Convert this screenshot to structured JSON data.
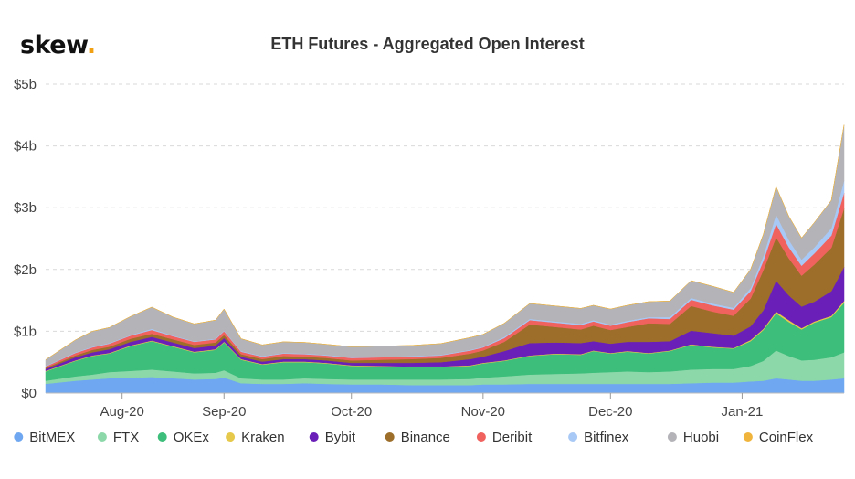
{
  "brand": {
    "name": "skew",
    "dot": "."
  },
  "chart_data": {
    "type": "area",
    "stacked": true,
    "title": "ETH Futures - Aggregated Open Interest",
    "xlabel": "",
    "ylabel": "",
    "x_range": [
      "2020-07-21",
      "2021-01-25"
    ],
    "ylim": [
      0,
      5
    ],
    "y_unit": "$ billions",
    "y_ticks": [
      "$0",
      "$1b",
      "$2b",
      "$3b",
      "$4b",
      "$5b"
    ],
    "x_ticks": [
      {
        "date": "2020-08-08",
        "label": "Aug-20"
      },
      {
        "date": "2020-09-01",
        "label": "Sep-20"
      },
      {
        "date": "2020-10-01",
        "label": "Oct-20"
      },
      {
        "date": "2020-11-01",
        "label": "Nov-20"
      },
      {
        "date": "2020-12-01",
        "label": "Dec-20"
      },
      {
        "date": "2021-01-01",
        "label": "Jan-21"
      }
    ],
    "grid": "horizontal dashed",
    "legend_position": "bottom",
    "x": [
      "2020-07-21",
      "2020-07-28",
      "2020-08-01",
      "2020-08-05",
      "2020-08-10",
      "2020-08-15",
      "2020-08-20",
      "2020-08-25",
      "2020-08-30",
      "2020-09-01",
      "2020-09-05",
      "2020-09-10",
      "2020-09-15",
      "2020-09-20",
      "2020-09-25",
      "2020-10-01",
      "2020-10-08",
      "2020-10-15",
      "2020-10-22",
      "2020-10-29",
      "2020-11-01",
      "2020-11-06",
      "2020-11-12",
      "2020-11-18",
      "2020-11-24",
      "2020-11-27",
      "2020-12-01",
      "2020-12-05",
      "2020-12-10",
      "2020-12-15",
      "2020-12-20",
      "2020-12-25",
      "2020-12-30",
      "2021-01-03",
      "2021-01-06",
      "2021-01-09",
      "2021-01-12",
      "2021-01-15",
      "2021-01-18",
      "2021-01-22",
      "2021-01-25"
    ],
    "series": [
      {
        "name": "BitMEX",
        "color": "#6fa8f0",
        "values": [
          0.15,
          0.2,
          0.22,
          0.24,
          0.25,
          0.26,
          0.24,
          0.22,
          0.23,
          0.25,
          0.16,
          0.15,
          0.15,
          0.16,
          0.15,
          0.14,
          0.14,
          0.13,
          0.13,
          0.13,
          0.14,
          0.14,
          0.15,
          0.15,
          0.15,
          0.15,
          0.15,
          0.15,
          0.15,
          0.15,
          0.16,
          0.17,
          0.17,
          0.19,
          0.2,
          0.24,
          0.22,
          0.2,
          0.2,
          0.22,
          0.24
        ]
      },
      {
        "name": "FTX",
        "color": "#8cd8a9",
        "values": [
          0.05,
          0.07,
          0.08,
          0.1,
          0.11,
          0.12,
          0.11,
          0.1,
          0.1,
          0.12,
          0.08,
          0.07,
          0.07,
          0.08,
          0.08,
          0.08,
          0.08,
          0.09,
          0.09,
          0.1,
          0.11,
          0.13,
          0.15,
          0.16,
          0.17,
          0.18,
          0.19,
          0.2,
          0.19,
          0.2,
          0.22,
          0.22,
          0.22,
          0.25,
          0.32,
          0.45,
          0.38,
          0.33,
          0.34,
          0.36,
          0.42
        ]
      },
      {
        "name": "OKEx",
        "color": "#3dbe7a",
        "values": [
          0.15,
          0.25,
          0.3,
          0.3,
          0.4,
          0.46,
          0.4,
          0.34,
          0.37,
          0.45,
          0.3,
          0.24,
          0.28,
          0.26,
          0.25,
          0.22,
          0.21,
          0.2,
          0.2,
          0.21,
          0.23,
          0.25,
          0.3,
          0.32,
          0.3,
          0.35,
          0.3,
          0.32,
          0.3,
          0.33,
          0.4,
          0.35,
          0.33,
          0.4,
          0.5,
          0.6,
          0.55,
          0.5,
          0.6,
          0.65,
          0.8
        ]
      },
      {
        "name": "Kraken",
        "color": "#e6c84a",
        "values": [
          0.01,
          0.01,
          0.01,
          0.01,
          0.01,
          0.01,
          0.01,
          0.01,
          0.01,
          0.01,
          0.01,
          0.01,
          0.01,
          0.01,
          0.01,
          0.01,
          0.01,
          0.01,
          0.01,
          0.01,
          0.01,
          0.01,
          0.01,
          0.01,
          0.01,
          0.01,
          0.01,
          0.01,
          0.01,
          0.01,
          0.01,
          0.01,
          0.01,
          0.02,
          0.02,
          0.03,
          0.03,
          0.02,
          0.02,
          0.02,
          0.03
        ]
      },
      {
        "name": "Bybit",
        "color": "#6a1fb8",
        "values": [
          0.03,
          0.05,
          0.05,
          0.06,
          0.06,
          0.06,
          0.06,
          0.06,
          0.06,
          0.06,
          0.04,
          0.04,
          0.04,
          0.04,
          0.04,
          0.04,
          0.05,
          0.06,
          0.07,
          0.1,
          0.1,
          0.15,
          0.2,
          0.18,
          0.18,
          0.15,
          0.15,
          0.15,
          0.18,
          0.15,
          0.22,
          0.22,
          0.2,
          0.22,
          0.3,
          0.5,
          0.4,
          0.35,
          0.32,
          0.4,
          0.55
        ]
      },
      {
        "name": "Binance",
        "color": "#9c6e2a",
        "values": [
          0.02,
          0.03,
          0.04,
          0.04,
          0.05,
          0.05,
          0.05,
          0.05,
          0.05,
          0.05,
          0.04,
          0.04,
          0.05,
          0.04,
          0.04,
          0.04,
          0.05,
          0.06,
          0.07,
          0.09,
          0.1,
          0.15,
          0.3,
          0.25,
          0.22,
          0.25,
          0.22,
          0.24,
          0.3,
          0.28,
          0.4,
          0.35,
          0.32,
          0.45,
          0.65,
          0.7,
          0.6,
          0.5,
          0.6,
          0.7,
          0.95
        ]
      },
      {
        "name": "Deribit",
        "color": "#f0625e",
        "values": [
          0.02,
          0.04,
          0.04,
          0.05,
          0.05,
          0.06,
          0.05,
          0.05,
          0.05,
          0.06,
          0.04,
          0.04,
          0.04,
          0.04,
          0.04,
          0.04,
          0.04,
          0.04,
          0.04,
          0.05,
          0.05,
          0.06,
          0.07,
          0.07,
          0.07,
          0.07,
          0.07,
          0.08,
          0.08,
          0.08,
          0.1,
          0.1,
          0.1,
          0.12,
          0.15,
          0.22,
          0.18,
          0.16,
          0.18,
          0.2,
          0.25
        ]
      },
      {
        "name": "Bitfinex",
        "color": "#a8c8f5",
        "values": [
          0.01,
          0.01,
          0.01,
          0.01,
          0.01,
          0.02,
          0.01,
          0.01,
          0.01,
          0.01,
          0.01,
          0.01,
          0.01,
          0.01,
          0.01,
          0.01,
          0.01,
          0.01,
          0.01,
          0.01,
          0.01,
          0.02,
          0.02,
          0.02,
          0.02,
          0.02,
          0.02,
          0.02,
          0.02,
          0.03,
          0.03,
          0.03,
          0.03,
          0.05,
          0.08,
          0.15,
          0.12,
          0.1,
          0.1,
          0.12,
          0.2
        ]
      },
      {
        "name": "Huobi",
        "color": "#b3b3b8",
        "values": [
          0.1,
          0.2,
          0.25,
          0.25,
          0.3,
          0.35,
          0.3,
          0.28,
          0.3,
          0.35,
          0.2,
          0.18,
          0.18,
          0.18,
          0.17,
          0.17,
          0.17,
          0.17,
          0.18,
          0.2,
          0.2,
          0.22,
          0.25,
          0.25,
          0.25,
          0.24,
          0.25,
          0.25,
          0.25,
          0.26,
          0.28,
          0.28,
          0.25,
          0.3,
          0.35,
          0.45,
          0.38,
          0.35,
          0.4,
          0.45,
          0.9
        ]
      },
      {
        "name": "CoinFlex",
        "color": "#f0b43c",
        "values": [
          0,
          0,
          0,
          0,
          0,
          0,
          0,
          0,
          0,
          0,
          0,
          0,
          0,
          0,
          0,
          0,
          0,
          0,
          0,
          0,
          0,
          0,
          0,
          0,
          0,
          0,
          0,
          0,
          0,
          0,
          0,
          0,
          0,
          0,
          0,
          0,
          0,
          0,
          0,
          0,
          0
        ]
      }
    ]
  }
}
